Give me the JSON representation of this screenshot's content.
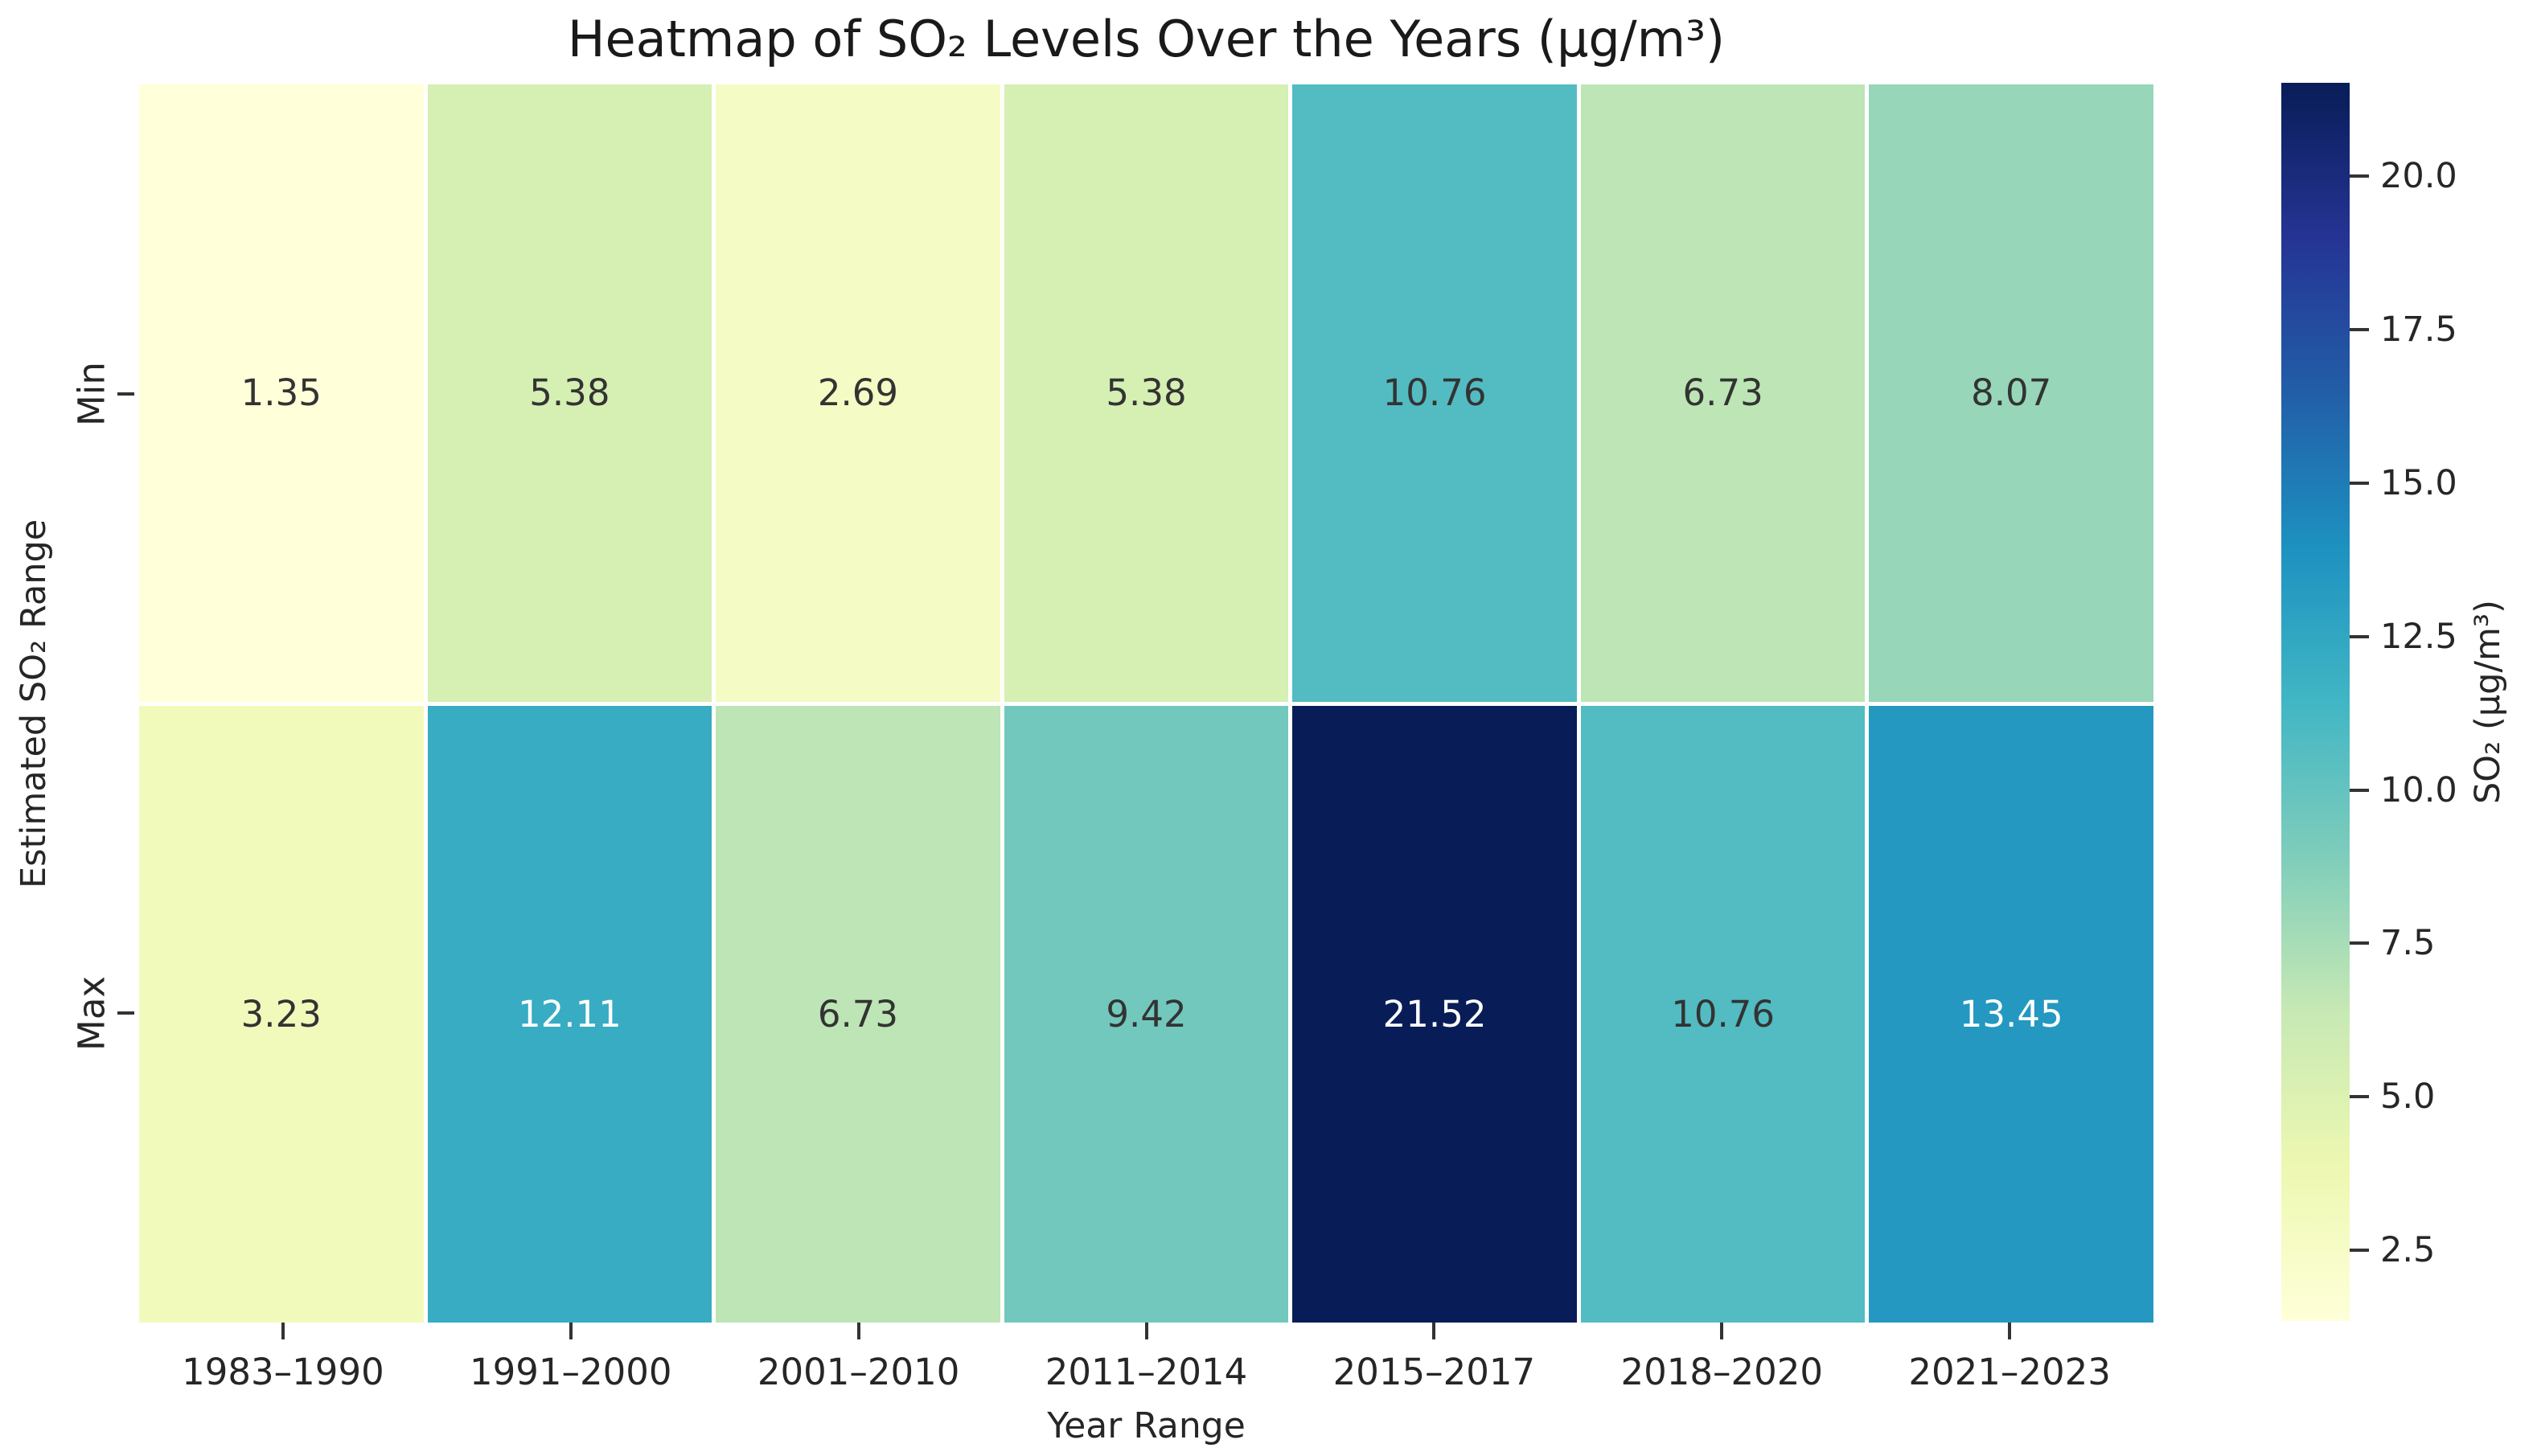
{
  "chart_data": {
    "type": "heatmap",
    "title": "Heatmap of SO₂ Levels Over the Years (μg/m³)",
    "xlabel": "Year Range",
    "ylabel": "Estimated SO₂ Range",
    "colormap": "YlGnBu",
    "categories_x": [
      "1983–1990",
      "1991–2000",
      "2001–2010",
      "2011–2014",
      "2015–2017",
      "2018–2020",
      "2021–2023"
    ],
    "categories_y": [
      "Min",
      "Max"
    ],
    "series": [
      {
        "name": "Min",
        "values": [
          1.35,
          5.38,
          2.69,
          5.38,
          10.76,
          6.73,
          8.07
        ]
      },
      {
        "name": "Max",
        "values": [
          3.23,
          12.11,
          6.73,
          9.42,
          21.52,
          10.76,
          13.45
        ]
      }
    ],
    "cells": [
      [
        {
          "label": "1.35",
          "bg": "#ffffd9",
          "fg": "#333333"
        },
        {
          "label": "5.38",
          "bg": "#d6efb3",
          "fg": "#333333"
        },
        {
          "label": "2.69",
          "bg": "#f5fbc4",
          "fg": "#333333"
        },
        {
          "label": "5.38",
          "bg": "#d6efb3",
          "fg": "#333333"
        },
        {
          "label": "10.76",
          "bg": "#52bcc2",
          "fg": "#333333"
        },
        {
          "label": "6.73",
          "bg": "#bde5b5",
          "fg": "#333333"
        },
        {
          "label": "8.07",
          "bg": "#97d6b9",
          "fg": "#333333"
        }
      ],
      [
        {
          "label": "3.23",
          "bg": "#f2fabb",
          "fg": "#333333"
        },
        {
          "label": "12.11",
          "bg": "#37acc3",
          "fg": "#ffffff"
        },
        {
          "label": "6.73",
          "bg": "#bde5b5",
          "fg": "#333333"
        },
        {
          "label": "9.42",
          "bg": "#72c8bd",
          "fg": "#333333"
        },
        {
          "label": "21.52",
          "bg": "#081d58",
          "fg": "#ffffff"
        },
        {
          "label": "10.76",
          "bg": "#52bcc2",
          "fg": "#333333"
        },
        {
          "label": "13.45",
          "bg": "#2498c1",
          "fg": "#ffffff"
        }
      ]
    ],
    "colorbar": {
      "label": "SO₂ (μg/m³)",
      "vmin": 1.35,
      "vmax": 21.52,
      "ticks": [
        {
          "label": "2.5",
          "value": 2.5
        },
        {
          "label": "5.0",
          "value": 5.0
        },
        {
          "label": "7.5",
          "value": 7.5
        },
        {
          "label": "10.0",
          "value": 10.0
        },
        {
          "label": "12.5",
          "value": 12.5
        },
        {
          "label": "15.0",
          "value": 15.0
        },
        {
          "label": "17.5",
          "value": 17.5
        },
        {
          "label": "20.0",
          "value": 20.0
        }
      ],
      "gradient_stops": [
        "#ffffd9",
        "#edf8b1",
        "#c7e9b4",
        "#7fcdbb",
        "#41b6c4",
        "#1d91c0",
        "#225ea8",
        "#253494",
        "#081d58"
      ]
    },
    "layout": {
      "grid": "off",
      "legend": "colorbar-right",
      "annotations": "on"
    }
  }
}
